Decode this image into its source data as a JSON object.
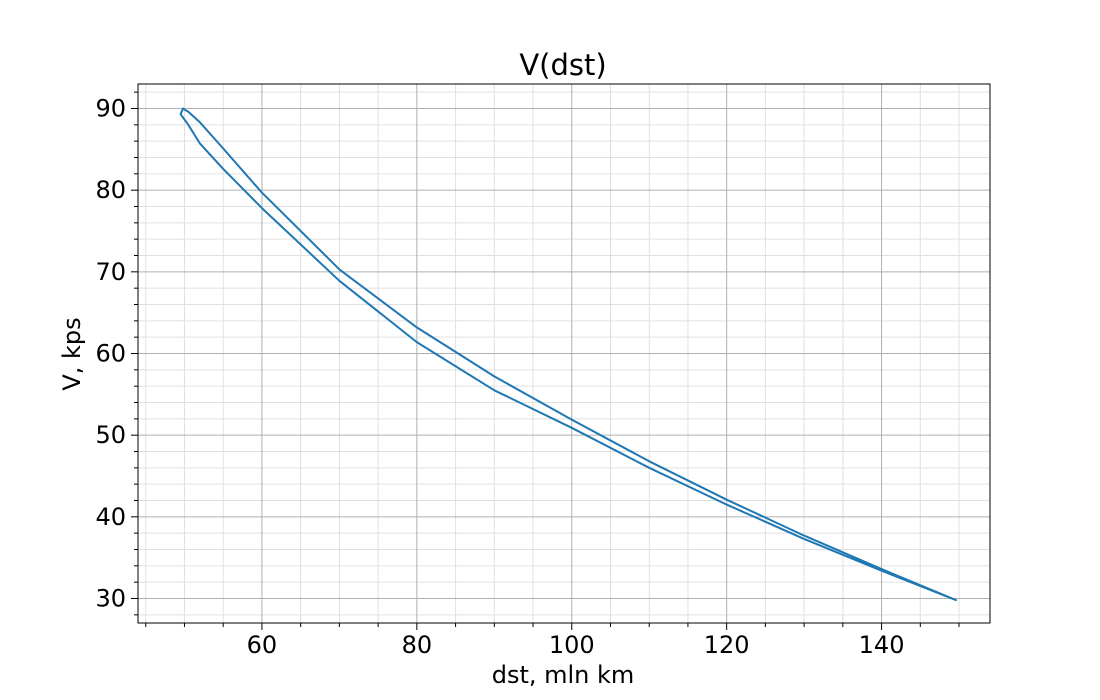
{
  "chart_data": {
    "type": "line",
    "title": "V(dst)",
    "xlabel": "dst, mln km",
    "ylabel": "V, kps",
    "xlim": [
      44,
      154
    ],
    "ylim": [
      27,
      93
    ],
    "xticks": [
      60,
      80,
      100,
      120,
      140
    ],
    "yticks": [
      30,
      40,
      50,
      60,
      70,
      80,
      90
    ],
    "xtick_labels": [
      "60",
      "80",
      "100",
      "120",
      "140"
    ],
    "ytick_labels": [
      "30",
      "40",
      "50",
      "60",
      "70",
      "80",
      "90"
    ],
    "x_minor_step": 5,
    "y_minor_step": 2,
    "grid": true,
    "minor_grid": true,
    "line_color": "#1f77b4",
    "series": [
      {
        "x": [
          149.6,
          140,
          130,
          120,
          110,
          100,
          90,
          80,
          70,
          60,
          55,
          52,
          50.5,
          49.8,
          49.5,
          50.5,
          52,
          55,
          60,
          70,
          80,
          90,
          100,
          110,
          120,
          130,
          140,
          149.6
        ],
        "y": [
          29.8,
          33.6,
          37.7,
          42.1,
          46.8,
          51.9,
          57.2,
          63.2,
          70.3,
          79.7,
          85.1,
          88.3,
          89.6,
          90.0,
          89.3,
          88.0,
          85.7,
          82.6,
          77.8,
          68.9,
          61.4,
          55.5,
          50.9,
          46.0,
          41.5,
          37.3,
          33.4,
          29.8
        ]
      }
    ]
  }
}
